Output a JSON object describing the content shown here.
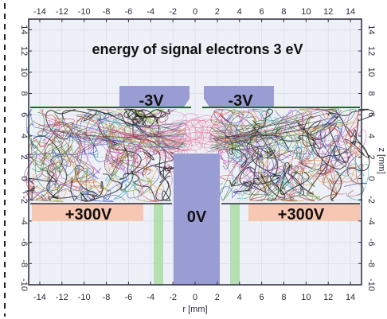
{
  "title": "energy of signal electrons 3 eV",
  "x_axis": {
    "label": "r [mm]",
    "ticks": [
      "-14",
      "-12",
      "-10",
      "-8",
      "-6",
      "-4",
      "-2",
      "0",
      "2",
      "4",
      "6",
      "8",
      "10",
      "12",
      "14"
    ],
    "range": [
      -15,
      15
    ]
  },
  "y_axis": {
    "label": "z [mm]",
    "ticks": [
      "-10",
      "-8",
      "-6",
      "-4",
      "-2",
      "0",
      "2",
      "4",
      "6",
      "8",
      "10",
      "12",
      "14"
    ],
    "range": [
      -10,
      15
    ]
  },
  "electrodes": {
    "left_top_label": "-3V",
    "right_top_label": "-3V",
    "center_label": "0V",
    "left_bottom_label": "+300V",
    "right_bottom_label": "+300V"
  },
  "colors": {
    "grid_bg": "#edf0f6",
    "electrode_blue": "#9a9cd4",
    "electrode_pink": "#f6c8b4",
    "green_strip": "#a9dca4",
    "detector_line": "#1f6b2e",
    "frame": "#2b2b3a"
  }
}
